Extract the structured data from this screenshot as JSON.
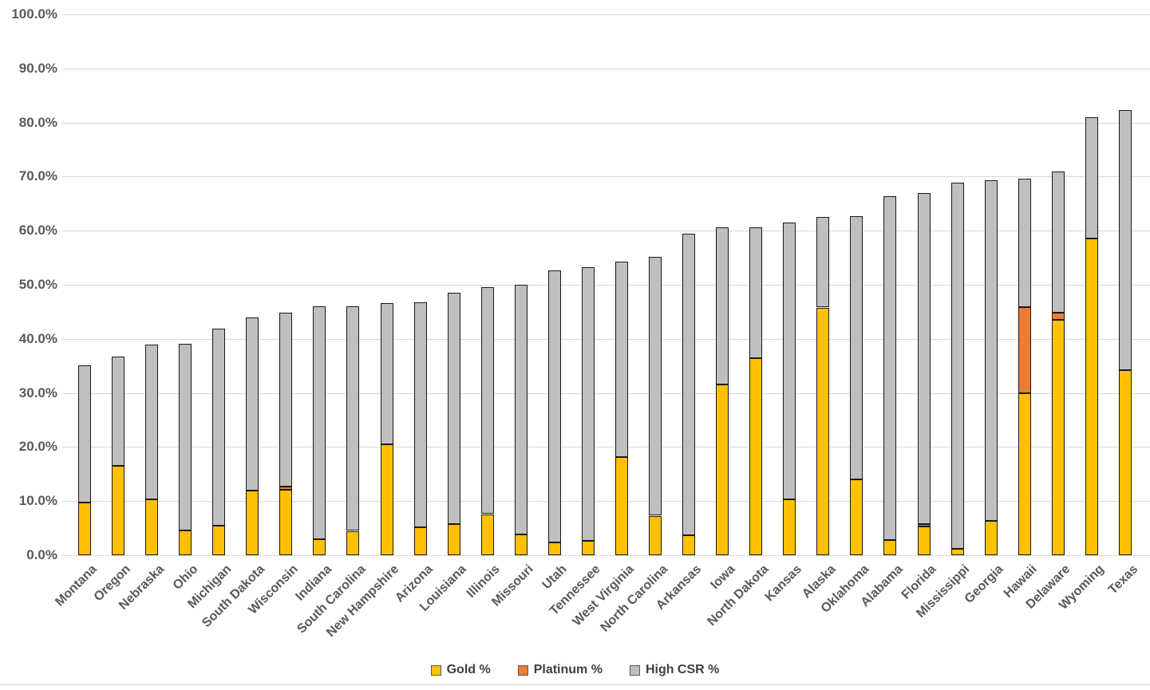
{
  "chart_data": {
    "type": "bar",
    "stacked": true,
    "title": "",
    "xlabel": "",
    "ylabel": "",
    "grid": true,
    "legend_position": "bottom",
    "y_axis": {
      "min": 0,
      "max": 100,
      "step": 10,
      "tick_labels": [
        "0.0%",
        "10.0%",
        "20.0%",
        "30.0%",
        "40.0%",
        "50.0%",
        "60.0%",
        "70.0%",
        "80.0%",
        "90.0%",
        "100.0%"
      ]
    },
    "categories": [
      "Montana",
      "Oregon",
      "Nebraska",
      "Ohio",
      "Michigan",
      "South Dakota",
      "Wisconsin",
      "Indiana",
      "South Carolina",
      "New Hampshire",
      "Arizona",
      "Louisiana",
      "Illinois",
      "Missouri",
      "Utah",
      "Tennessee",
      "West Virginia",
      "North Carolina",
      "Arkansas",
      "Iowa",
      "North Dakota",
      "Kansas",
      "Alaska",
      "Oklahoma",
      "Alabama",
      "Florida",
      "Mississippi",
      "Georgia",
      "Hawaii",
      "Delaware",
      "Wyoming",
      "Texas"
    ],
    "series": [
      {
        "name": "Gold %",
        "key": "gold",
        "color": "#FFC000",
        "values": [
          9.8,
          16.5,
          10.3,
          4.6,
          5.5,
          11.9,
          12.1,
          2.9,
          4.5,
          20.5,
          5.1,
          5.8,
          7.6,
          3.9,
          2.3,
          2.7,
          18.2,
          7.3,
          3.7,
          31.6,
          36.5,
          10.4,
          45.8,
          14.0,
          2.8,
          5.3,
          1.2,
          6.3,
          29.9,
          43.5,
          58.6,
          34.2
        ]
      },
      {
        "name": "Platinum %",
        "key": "platinum",
        "color": "#ED7D31",
        "values": [
          0,
          0,
          0,
          0,
          0,
          0,
          0.6,
          0,
          0,
          0,
          0,
          0,
          0,
          0,
          0,
          0,
          0,
          0,
          0,
          0,
          0,
          0,
          0,
          0,
          0,
          0.5,
          0,
          0,
          16.0,
          1.3,
          0,
          0
        ]
      },
      {
        "name": "High CSR %",
        "key": "high_csr",
        "color": "#BFBFBF",
        "values": [
          25.3,
          20.3,
          28.7,
          34.5,
          36.4,
          32.1,
          32.1,
          43.1,
          41.5,
          26.1,
          41.7,
          42.8,
          42.0,
          46.1,
          50.4,
          50.5,
          36.1,
          47.9,
          55.8,
          29.1,
          24.2,
          51.1,
          16.8,
          48.7,
          63.6,
          61.1,
          67.7,
          63.1,
          23.7,
          26.1,
          22.4,
          48.1
        ]
      }
    ],
    "totals": [
      35.1,
      36.8,
      39.0,
      39.1,
      41.9,
      44.0,
      44.8,
      46.0,
      46.0,
      46.6,
      46.8,
      48.6,
      49.6,
      50.0,
      52.7,
      53.2,
      54.3,
      55.2,
      59.5,
      60.7,
      60.7,
      61.5,
      62.6,
      62.7,
      66.4,
      66.9,
      68.9,
      69.4,
      69.6,
      70.9,
      81.0,
      82.3
    ]
  },
  "styles": {
    "axis_text_color": "#595959",
    "gridline_color": "#D9D9D9",
    "bar_border_color": "#1A1A1A",
    "background_color": "#FFFFFF"
  }
}
